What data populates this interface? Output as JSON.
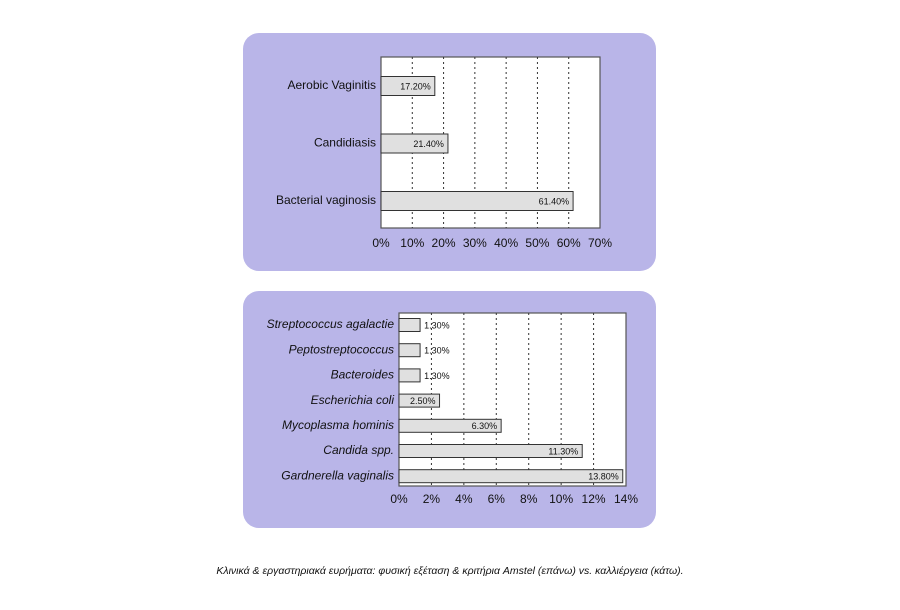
{
  "chart_data": [
    {
      "type": "bar",
      "orientation": "horizontal",
      "categories": [
        "Aerobic Vaginitis",
        "Candidiasis",
        "Bacterial vaginosis"
      ],
      "values": [
        17.2,
        21.4,
        61.4
      ],
      "value_labels": [
        "17.20%",
        "21.40%",
        "61.40%"
      ],
      "color": "#e0e0e0",
      "xlim": [
        0,
        70
      ],
      "xticks": [
        {
          "value": 0,
          "label": "0%"
        },
        {
          "value": 10,
          "label": "10%"
        },
        {
          "value": 20,
          "label": "20%"
        },
        {
          "value": 30,
          "label": "30%"
        },
        {
          "value": 40,
          "label": "40%"
        },
        {
          "value": 50,
          "label": "50%"
        },
        {
          "value": 60,
          "label": "60%"
        },
        {
          "value": 70,
          "label": "70%"
        }
      ],
      "grid": true
    },
    {
      "type": "bar",
      "orientation": "horizontal",
      "categories": [
        "Streptococcus agalactie",
        "Peptostreptococcus",
        "Bacteroides",
        "Escherichia coli",
        "Mycoplasma hominis",
        "Candida spp.",
        "Gardnerella vaginalis"
      ],
      "values": [
        1.3,
        1.3,
        1.3,
        2.5,
        6.3,
        11.3,
        13.8
      ],
      "value_labels": [
        "1.30%",
        "1.30%",
        "1.30%",
        "2.50%",
        "6.30%",
        "11.30%",
        "13.80%"
      ],
      "color": "#e0e0e0",
      "xlim": [
        0,
        14
      ],
      "xticks": [
        {
          "value": 0,
          "label": "0%"
        },
        {
          "value": 2,
          "label": "2%"
        },
        {
          "value": 4,
          "label": "4%"
        },
        {
          "value": 6,
          "label": "6%"
        },
        {
          "value": 8,
          "label": "8%"
        },
        {
          "value": 10,
          "label": "10%"
        },
        {
          "value": 12,
          "label": "12%"
        },
        {
          "value": 14,
          "label": "14%"
        }
      ],
      "grid": true
    }
  ],
  "caption": "Κλινικά & εργαστηριακά ευρήματα: φυσική εξέταση & κριτήρια Amstel (επάνω) vs. καλλιέργεια (κάτω)."
}
